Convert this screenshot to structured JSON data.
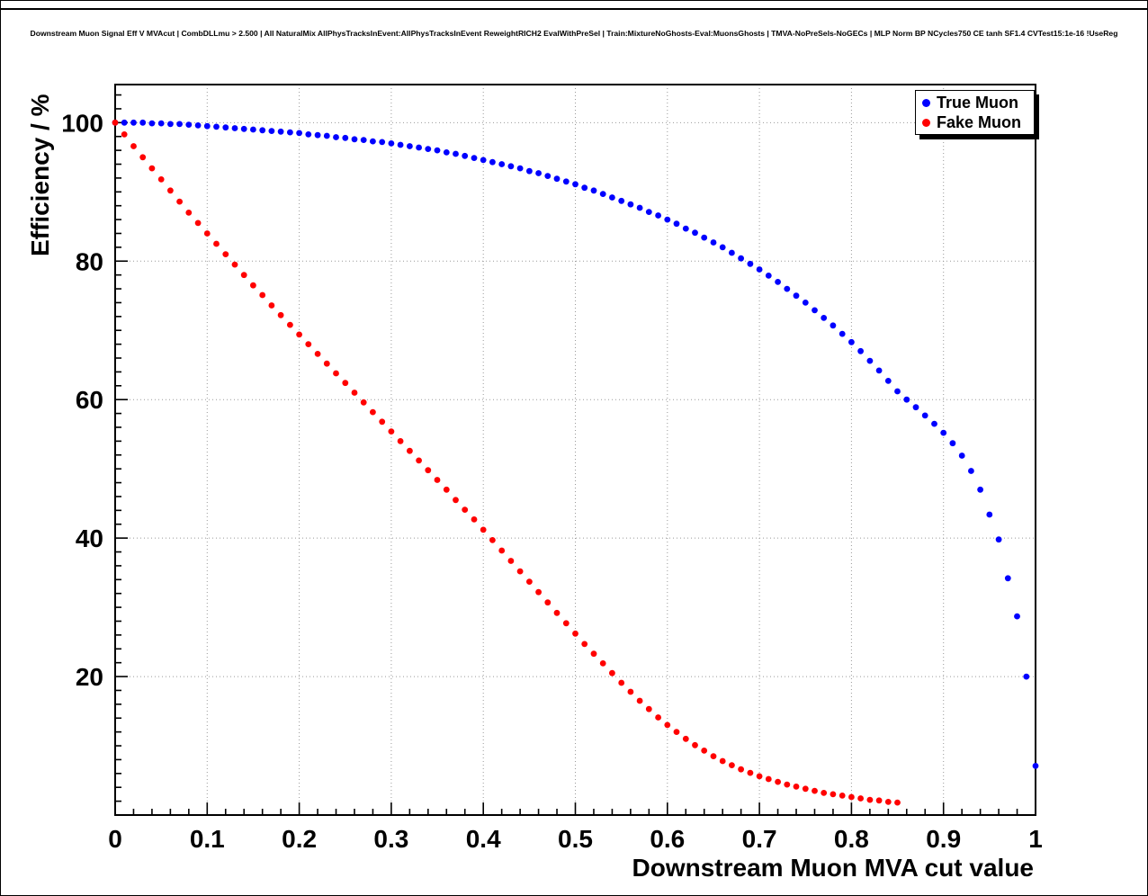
{
  "header": {
    "title": "Downstream Muon Signal Eff V MVAcut | CombDLLmu > 2.500 | All NaturalMix AllPhysTracksInEvent:AllPhysTracksInEvent ReweightRICH2 EvalWithPreSel | Train:MixtureNoGhosts-Eval:MuonsGhosts | TMVA-NoPreSels-NoGECs | MLP Norm BP NCycles750 CE tanh SF1.4 CVTest15:1e-16 !UseReg"
  },
  "legend": {
    "items": [
      {
        "label": "True Muon",
        "color": "#0000ff"
      },
      {
        "label": "Fake Muon",
        "color": "#ff0000"
      }
    ]
  },
  "chart_data": {
    "type": "scatter",
    "title": "Downstream Muon Signal Eff V MVAcut | CombDLLmu > 2.500 | All NaturalMix AllPhysTracksInEvent:AllPhysTracksInEvent ReweightRICH2 EvalWithPreSel | Train:MixtureNoGhosts-Eval:MuonsGhosts | TMVA-NoPreSels-NoGECs | MLP Norm BP NCycles750 CE tanh SF1.4 CVTest15:1e-16 !UseReg",
    "xlabel": "Downstream Muon MVA cut value",
    "ylabel": "Efficiency / %",
    "xlim": [
      0,
      1
    ],
    "ylim": [
      0,
      105.5
    ],
    "grid": true,
    "legend_position": "top-right",
    "x_ticks": [
      0,
      0.1,
      0.2,
      0.3,
      0.4,
      0.5,
      0.6,
      0.7,
      0.8,
      0.9,
      1
    ],
    "x_tick_labels": [
      "0",
      "0.1",
      "0.2",
      "0.3",
      "0.4",
      "0.5",
      "0.6",
      "0.7",
      "0.8",
      "0.9",
      "1"
    ],
    "y_ticks": [
      20,
      40,
      60,
      80,
      100
    ],
    "y_tick_labels": [
      "20",
      "40",
      "60",
      "80",
      "100"
    ],
    "x_minor_step": 0.02,
    "y_minor_step": 2,
    "series": [
      {
        "name": "True Muon",
        "color": "#0000ff",
        "marker": "dot",
        "x": [
          0,
          0.01,
          0.02,
          0.03,
          0.04,
          0.05,
          0.06,
          0.07,
          0.08,
          0.09,
          0.1,
          0.11,
          0.12,
          0.13,
          0.14,
          0.15,
          0.16,
          0.17,
          0.18,
          0.19,
          0.2,
          0.21,
          0.22,
          0.23,
          0.24,
          0.25,
          0.26,
          0.27,
          0.28,
          0.29,
          0.3,
          0.31,
          0.32,
          0.33,
          0.34,
          0.35,
          0.36,
          0.37,
          0.38,
          0.39,
          0.4,
          0.41,
          0.42,
          0.43,
          0.44,
          0.45,
          0.46,
          0.47,
          0.48,
          0.49,
          0.5,
          0.51,
          0.52,
          0.53,
          0.54,
          0.55,
          0.56,
          0.57,
          0.58,
          0.59,
          0.6,
          0.61,
          0.62,
          0.63,
          0.64,
          0.65,
          0.66,
          0.67,
          0.68,
          0.69,
          0.7,
          0.71,
          0.72,
          0.73,
          0.74,
          0.75,
          0.76,
          0.77,
          0.78,
          0.79,
          0.8,
          0.81,
          0.82,
          0.83,
          0.84,
          0.85,
          0.86,
          0.87,
          0.88,
          0.89,
          0.9,
          0.91,
          0.92,
          0.93,
          0.94,
          0.95,
          0.96,
          0.97,
          0.98,
          0.99,
          1
        ],
        "y": [
          100,
          100,
          100,
          100,
          99.9,
          99.9,
          99.8,
          99.8,
          99.7,
          99.6,
          99.5,
          99.4,
          99.3,
          99.2,
          99.1,
          99,
          98.9,
          98.8,
          98.7,
          98.6,
          98.5,
          98.3,
          98.2,
          98.1,
          97.9,
          97.8,
          97.6,
          97.5,
          97.3,
          97.2,
          97,
          96.8,
          96.6,
          96.4,
          96.2,
          96,
          95.7,
          95.5,
          95.2,
          94.9,
          94.6,
          94.3,
          94,
          93.7,
          93.4,
          93,
          92.7,
          92.3,
          91.9,
          91.5,
          91.1,
          90.6,
          90.2,
          89.7,
          89.2,
          88.7,
          88.2,
          87.7,
          87.1,
          86.6,
          86,
          85.4,
          84.7,
          84.1,
          83.4,
          82.7,
          82,
          81.2,
          80.4,
          79.6,
          78.8,
          77.9,
          77,
          76,
          75,
          74,
          72.9,
          71.8,
          70.7,
          69.5,
          68.3,
          67,
          65.6,
          64.2,
          62.7,
          61.2,
          60,
          58.9,
          57.7,
          56.5,
          55.2,
          53.7,
          51.9,
          49.7,
          47,
          43.4,
          39.8,
          34.2,
          28.7,
          20,
          7.1
        ]
      },
      {
        "name": "Fake Muon",
        "color": "#ff0000",
        "marker": "dot",
        "x": [
          0,
          0.01,
          0.02,
          0.03,
          0.04,
          0.05,
          0.06,
          0.07,
          0.08,
          0.09,
          0.1,
          0.11,
          0.12,
          0.13,
          0.14,
          0.15,
          0.16,
          0.17,
          0.18,
          0.19,
          0.2,
          0.21,
          0.22,
          0.23,
          0.24,
          0.25,
          0.26,
          0.27,
          0.28,
          0.29,
          0.3,
          0.31,
          0.32,
          0.33,
          0.34,
          0.35,
          0.36,
          0.37,
          0.38,
          0.39,
          0.4,
          0.41,
          0.42,
          0.43,
          0.44,
          0.45,
          0.46,
          0.47,
          0.48,
          0.49,
          0.5,
          0.51,
          0.52,
          0.53,
          0.54,
          0.55,
          0.56,
          0.57,
          0.58,
          0.59,
          0.6,
          0.61,
          0.62,
          0.63,
          0.64,
          0.65,
          0.66,
          0.67,
          0.68,
          0.69,
          0.7,
          0.71,
          0.72,
          0.73,
          0.74,
          0.75,
          0.76,
          0.77,
          0.78,
          0.79,
          0.8,
          0.81,
          0.82,
          0.83,
          0.84,
          0.85
        ],
        "y": [
          100,
          98.3,
          96.6,
          95,
          93.4,
          91.8,
          90.2,
          88.6,
          87,
          85.5,
          84,
          82.5,
          81,
          79.5,
          78,
          76.5,
          75.1,
          73.6,
          72.2,
          70.8,
          69.4,
          68,
          66.6,
          65.2,
          63.8,
          62.4,
          61,
          59.6,
          58.2,
          56.8,
          55.4,
          54,
          52.6,
          51.2,
          49.8,
          48.4,
          47,
          45.5,
          44.1,
          42.7,
          41.2,
          39.7,
          38.2,
          36.7,
          35.2,
          33.7,
          32.2,
          30.7,
          29.2,
          27.7,
          26.2,
          24.7,
          23.3,
          21.9,
          20.5,
          19.1,
          17.8,
          16.5,
          15.3,
          14.1,
          13,
          12,
          11,
          10.1,
          9.3,
          8.5,
          7.8,
          7.2,
          6.6,
          6.1,
          5.6,
          5.2,
          4.8,
          4.4,
          4.1,
          3.8,
          3.5,
          3.2,
          3,
          2.8,
          2.6,
          2.4,
          2.2,
          2.1,
          1.9,
          1.8
        ]
      }
    ]
  }
}
